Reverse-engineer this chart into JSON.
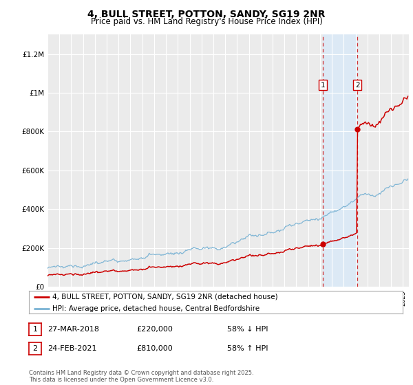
{
  "title": "4, BULL STREET, POTTON, SANDY, SG19 2NR",
  "subtitle": "Price paid vs. HM Land Registry's House Price Index (HPI)",
  "ylim": [
    0,
    1300000
  ],
  "xlim_start": 1995.0,
  "xlim_end": 2025.5,
  "background_color": "#ffffff",
  "plot_bg_color": "#ebebeb",
  "grid_color": "#ffffff",
  "hpi_line_color": "#7ab3d4",
  "price_line_color": "#cc0000",
  "shade_color": "#dce9f5",
  "dashed_line_color": "#cc0000",
  "transaction1_date": 2018.24,
  "transaction1_price": 220000,
  "transaction2_date": 2021.15,
  "transaction2_price": 810000,
  "ytick_labels": [
    "£0",
    "£200K",
    "£400K",
    "£600K",
    "£800K",
    "£1M",
    "£1.2M"
  ],
  "ytick_values": [
    0,
    200000,
    400000,
    600000,
    800000,
    1000000,
    1200000
  ],
  "footer_text": "Contains HM Land Registry data © Crown copyright and database right 2025.\nThis data is licensed under the Open Government Licence v3.0.",
  "legend_label1": "4, BULL STREET, POTTON, SANDY, SG19 2NR (detached house)",
  "legend_label2": "HPI: Average price, detached house, Central Bedfordshire",
  "table_row1": [
    "1",
    "27-MAR-2018",
    "£220,000",
    "58% ↓ HPI"
  ],
  "table_row2": [
    "2",
    "24-FEB-2021",
    "£810,000",
    "58% ↑ HPI"
  ]
}
